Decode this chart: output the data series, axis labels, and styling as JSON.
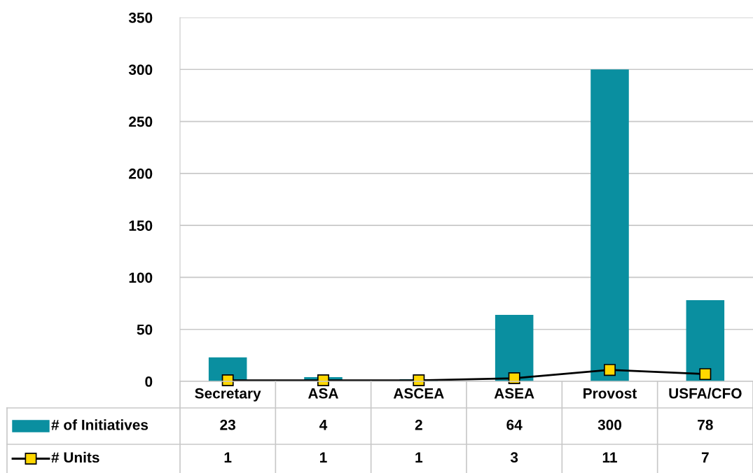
{
  "chart_data": {
    "type": "bar",
    "categories": [
      "Secretary",
      "ASA",
      "ASCEA",
      "ASEA",
      "Provost",
      "USFA/CFO"
    ],
    "series": [
      {
        "name": "# of Initiatives",
        "color": "#0a8fa0",
        "values": [
          23,
          4,
          2,
          64,
          300,
          78
        ]
      },
      {
        "name": "# Units",
        "type": "line",
        "color": "#000000",
        "marker": "square",
        "values": [
          1,
          1,
          1,
          3,
          11,
          7
        ]
      }
    ],
    "ylim": [
      0,
      350
    ],
    "yticks": [
      0,
      50,
      100,
      150,
      200,
      250,
      300,
      350
    ],
    "grid": "y",
    "legend": "bottom",
    "data_labels": true
  }
}
